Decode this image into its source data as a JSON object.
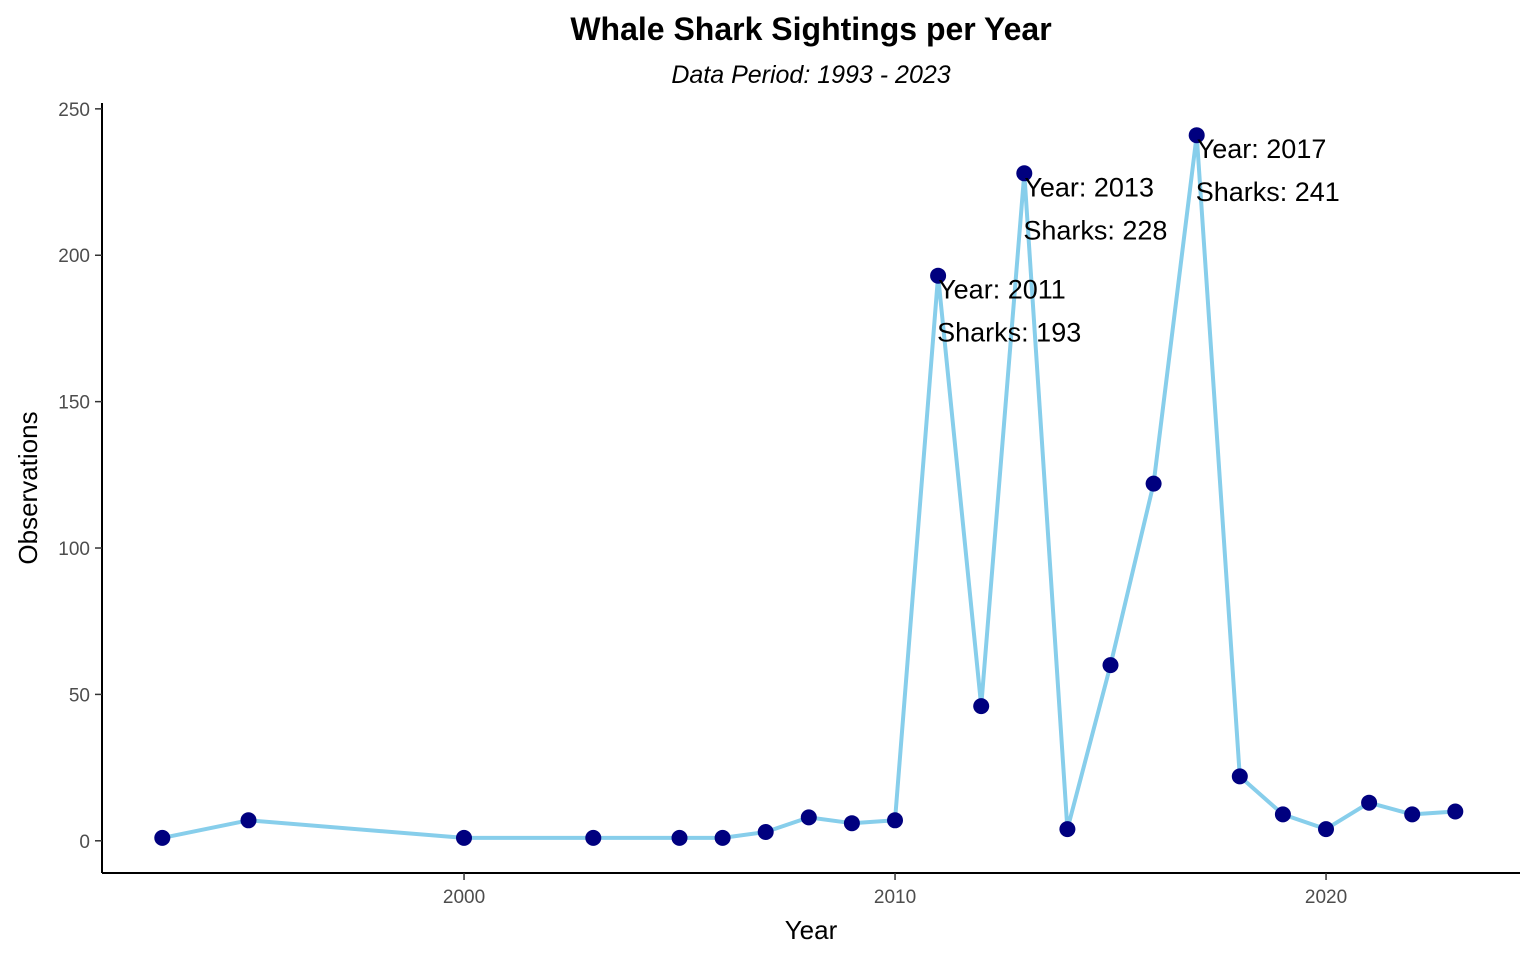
{
  "chart_data": {
    "type": "line",
    "title": "Whale Shark Sightings per Year",
    "subtitle": "Data Period: 1993 - 2023",
    "xlabel": "Year",
    "ylabel": "Observations",
    "xlim": [
      1991.6,
      2024.5
    ],
    "ylim": [
      -11,
      252
    ],
    "x_ticks": [
      2000,
      2010,
      2020
    ],
    "y_ticks": [
      0,
      50,
      100,
      150,
      200,
      250
    ],
    "grid": false,
    "legend": "none",
    "line_color": "#87CEEB",
    "point_color": "#00007F",
    "series": [
      {
        "x": [
          1993,
          1995,
          2000,
          2003,
          2005,
          2006,
          2007,
          2008,
          2009,
          2010,
          2011,
          2012,
          2013,
          2014,
          2015,
          2016,
          2017,
          2018,
          2019,
          2020,
          2021,
          2022,
          2023
        ],
        "values": [
          1,
          7,
          1,
          1,
          1,
          1,
          3,
          8,
          6,
          7,
          193,
          46,
          228,
          4,
          60,
          122,
          241,
          22,
          9,
          4,
          13,
          9,
          10
        ]
      }
    ],
    "annotations": [
      {
        "x": 2011,
        "y": 193,
        "line1": "Year:  2011",
        "line2": "Sharks:  193"
      },
      {
        "x": 2013,
        "y": 228,
        "line1": "Year:  2013",
        "line2": "Sharks:  228"
      },
      {
        "x": 2017,
        "y": 241,
        "line1": "Year:  2017",
        "line2": "Sharks:  241"
      }
    ]
  }
}
